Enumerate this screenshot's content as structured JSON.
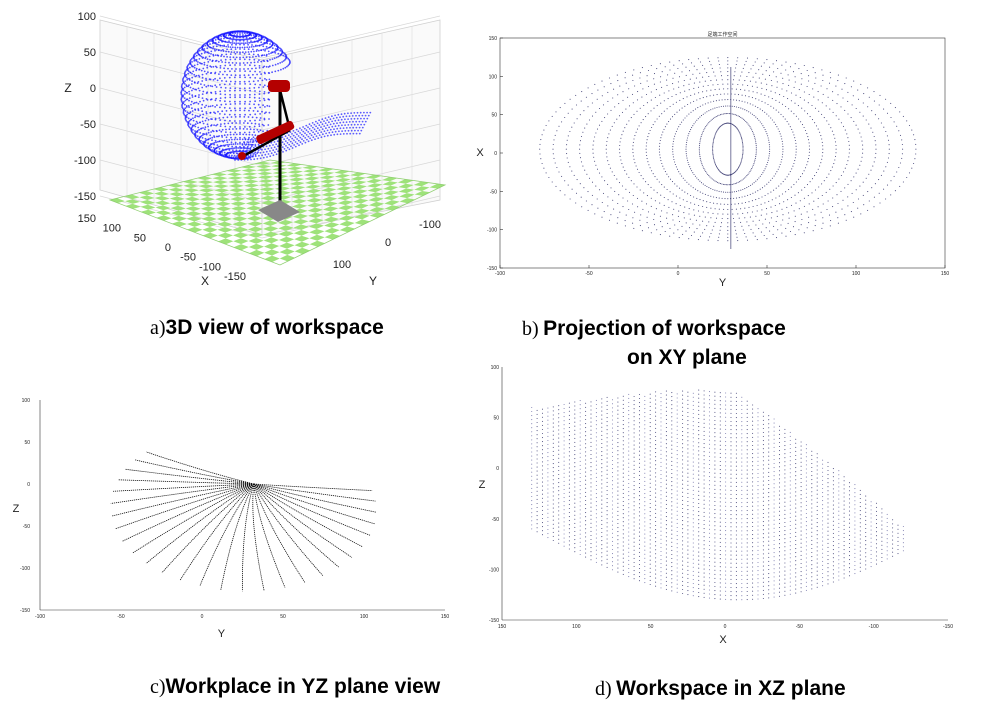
{
  "figure": {
    "captions": {
      "a": {
        "letter": "a)",
        "text": "3D view of workspace"
      },
      "b": {
        "letter": "b)",
        "line1": "Projection of workspace",
        "line2": "on XY plane"
      },
      "c": {
        "letter": "c)",
        "text": "Workplace in YZ plane view"
      },
      "d": {
        "letter": "d)",
        "text": "Workspace in XZ plane"
      }
    },
    "colors": {
      "points_blue": "#1a1aff",
      "points_dark": "#1a1a5a",
      "floor_green": "#9ee27a",
      "robot_red": "#b40000",
      "robot_black": "#000000",
      "axis": "#333333"
    }
  },
  "chart_data": [
    {
      "id": "a",
      "type": "scatter",
      "subtype": "3d",
      "title": "",
      "xlabel": "X",
      "ylabel": "Y",
      "zlabel": "Z",
      "z_ticks": [
        "100",
        "50",
        "0",
        "-50",
        "-100",
        "-150"
      ],
      "x_ticks": [
        "150",
        "100",
        "50",
        "0",
        "-50",
        "-100",
        "-150"
      ],
      "y_ticks": [
        "-100",
        "0",
        "100"
      ],
      "zlim": [
        -150,
        100
      ],
      "grid": true,
      "description_elements": [
        "workspace point cloud",
        "robot arm",
        "checkered floor"
      ]
    },
    {
      "id": "b",
      "type": "scatter",
      "title": "足端工作空间",
      "xlabel": "Y",
      "ylabel": "X",
      "x_ticks": [
        "-100",
        "-50",
        "0",
        "50",
        "100",
        "150"
      ],
      "y_ticks": [
        "-150",
        "-100",
        "-50",
        "0",
        "50",
        "100",
        "150"
      ],
      "xlim": [
        -100,
        150
      ],
      "ylim": [
        150,
        -150
      ],
      "grid": false
    },
    {
      "id": "c",
      "type": "line",
      "title": "",
      "xlabel": "Y",
      "ylabel": "Z",
      "x_ticks": [
        "-100",
        "-50",
        "0",
        "50",
        "100",
        "150"
      ],
      "y_ticks": [
        "100",
        "50",
        "0",
        "-50",
        "-100",
        "-150"
      ],
      "xlim": [
        -100,
        150
      ],
      "ylim": [
        -150,
        100
      ],
      "pivot": [
        32,
        0
      ],
      "num_lines": 28,
      "grid": false
    },
    {
      "id": "d",
      "type": "scatter",
      "title": "",
      "xlabel": "X",
      "ylabel": "Z",
      "x_ticks": [
        "150",
        "100",
        "50",
        "0",
        "-50",
        "-100",
        "-150"
      ],
      "y_ticks": [
        "100",
        "50",
        "0",
        "-50",
        "-100",
        "-150"
      ],
      "xlim": [
        150,
        -150
      ],
      "ylim": [
        -150,
        100
      ],
      "grid": false
    }
  ]
}
